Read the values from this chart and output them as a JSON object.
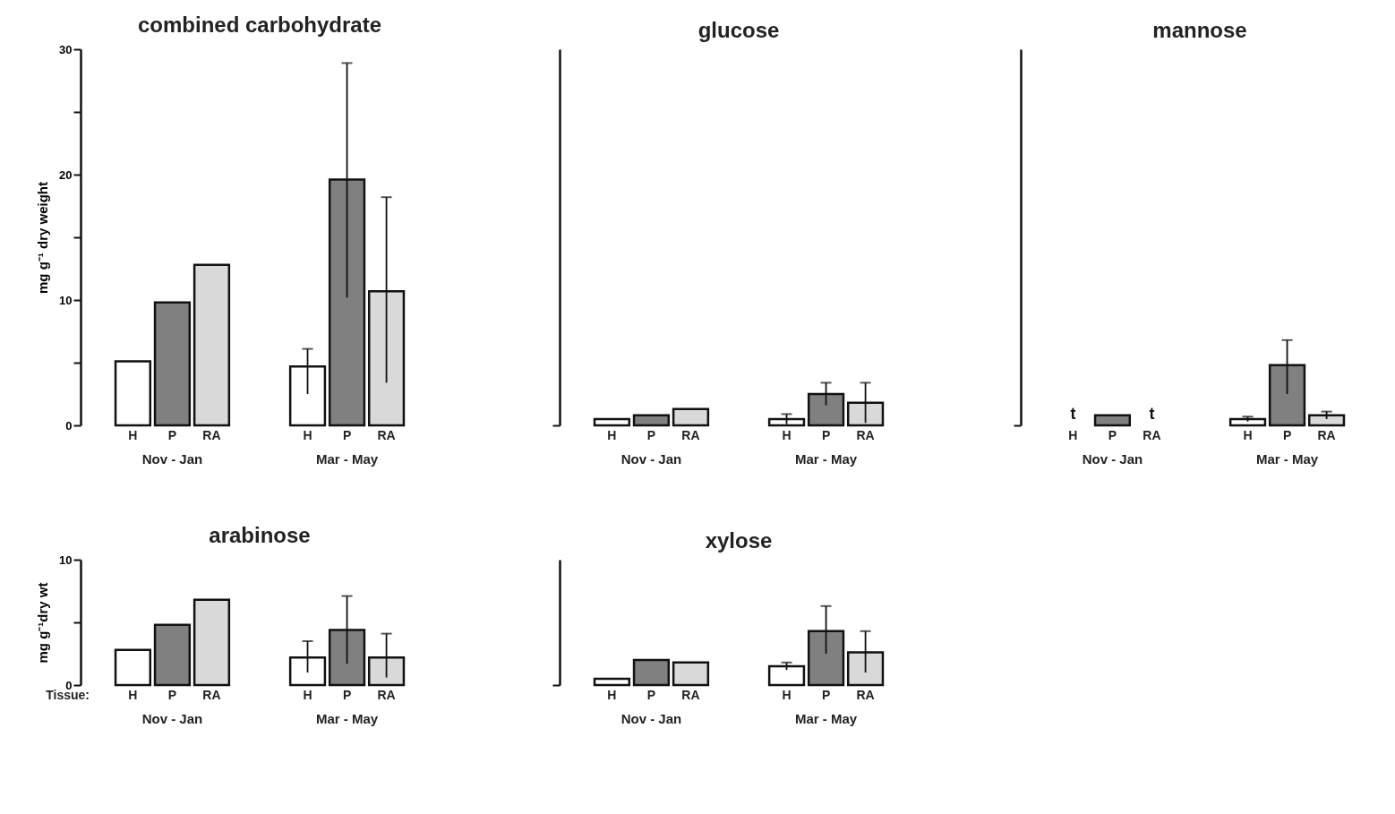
{
  "chart_data": [
    {
      "type": "bar",
      "title": "combined carbohydrate",
      "ylabel": "mg g⁻¹ dry weight",
      "categories": [
        "Nov - Jan",
        "Mar - May"
      ],
      "ylim": [
        0,
        30
      ],
      "yticks": [
        0,
        {
          "value": 5,
          "label": null
        },
        10,
        {
          "value": 15,
          "label": null
        },
        20,
        {
          "value": 25,
          "label": null
        },
        30
      ],
      "grid": false,
      "legend": false,
      "series": [
        {
          "name": "H",
          "color": "#ffffff",
          "values": [
            5.1,
            4.7
          ],
          "errors": [
            null,
            [
              2.5,
              6.1
            ]
          ]
        },
        {
          "name": "P",
          "color": "#808080",
          "values": [
            9.8,
            19.6
          ],
          "errors": [
            null,
            [
              10.2,
              28.9
            ]
          ]
        },
        {
          "name": "RA",
          "color": "#d9d9d9",
          "values": [
            12.8,
            10.7
          ],
          "errors": [
            null,
            [
              3.4,
              18.2
            ]
          ]
        }
      ]
    },
    {
      "type": "bar",
      "title": "glucose",
      "categories": [
        "Nov - Jan",
        "Mar - May"
      ],
      "ylim": [
        0,
        30
      ],
      "yticks": [
        {
          "value": 0,
          "label": null
        }
      ],
      "tick_labels": "x",
      "grid": false,
      "legend": false,
      "series": [
        {
          "name": "H",
          "color": "#ffffff",
          "values": [
            0.5,
            0.5
          ],
          "errors": [
            null,
            [
              0.1,
              0.9
            ]
          ]
        },
        {
          "name": "P",
          "color": "#808080",
          "values": [
            0.8,
            2.5
          ],
          "errors": [
            null,
            [
              1.6,
              3.4
            ]
          ]
        },
        {
          "name": "RA",
          "color": "#d9d9d9",
          "values": [
            1.3,
            1.8
          ],
          "errors": [
            null,
            [
              0.2,
              3.4
            ]
          ]
        }
      ]
    },
    {
      "type": "bar",
      "title": "mannose",
      "categories": [
        "Nov - Jan",
        "Mar - May"
      ],
      "ylim": [
        0,
        30
      ],
      "yticks": [
        {
          "value": 0,
          "label": null
        }
      ],
      "tick_labels": "x",
      "grid": false,
      "legend": false,
      "series": [
        {
          "name": "H",
          "color": "#ffffff",
          "values": [
            null,
            0.5
          ],
          "value_labels": [
            "t",
            null
          ],
          "errors": [
            null,
            [
              0.3,
              0.7
            ]
          ]
        },
        {
          "name": "P",
          "color": "#808080",
          "values": [
            0.8,
            4.8
          ],
          "errors": [
            null,
            [
              2.5,
              6.8
            ]
          ]
        },
        {
          "name": "RA",
          "color": "#d9d9d9",
          "values": [
            null,
            0.8
          ],
          "value_labels": [
            "t",
            null
          ],
          "errors": [
            null,
            [
              0.5,
              1.1
            ]
          ]
        }
      ]
    },
    {
      "type": "bar",
      "title": "arabinose",
      "ylabel": "mg g⁻¹dry wt",
      "legend_title": "Tissue:",
      "categories": [
        "Nov - Jan",
        "Mar - May"
      ],
      "ylim": [
        0,
        10
      ],
      "yticks": [
        0,
        {
          "value": 5,
          "label": null
        },
        10
      ],
      "grid": false,
      "legend": false,
      "series": [
        {
          "name": "H",
          "color": "#ffffff",
          "values": [
            2.8,
            2.2
          ],
          "errors": [
            null,
            [
              1.0,
              3.5
            ]
          ]
        },
        {
          "name": "P",
          "color": "#808080",
          "values": [
            4.8,
            4.4
          ],
          "errors": [
            null,
            [
              1.7,
              7.1
            ]
          ]
        },
        {
          "name": "RA",
          "color": "#d9d9d9",
          "values": [
            6.8,
            2.2
          ],
          "errors": [
            null,
            [
              0.6,
              4.1
            ]
          ]
        }
      ]
    },
    {
      "type": "bar",
      "title": "xylose",
      "categories": [
        "Nov - Jan",
        "Mar - May"
      ],
      "ylim": [
        0,
        10
      ],
      "yticks": [
        {
          "value": 0,
          "label": null
        }
      ],
      "tick_labels": "x",
      "grid": false,
      "legend": false,
      "series": [
        {
          "name": "H",
          "color": "#ffffff",
          "values": [
            0.5,
            1.5
          ],
          "errors": [
            null,
            [
              1.2,
              1.8
            ]
          ]
        },
        {
          "name": "P",
          "color": "#808080",
          "values": [
            2.0,
            4.3
          ],
          "errors": [
            null,
            [
              2.5,
              6.3
            ]
          ]
        },
        {
          "name": "RA",
          "color": "#d9d9d9",
          "values": [
            1.8,
            2.6
          ],
          "errors": [
            null,
            [
              1.0,
              4.3
            ]
          ]
        }
      ]
    }
  ]
}
